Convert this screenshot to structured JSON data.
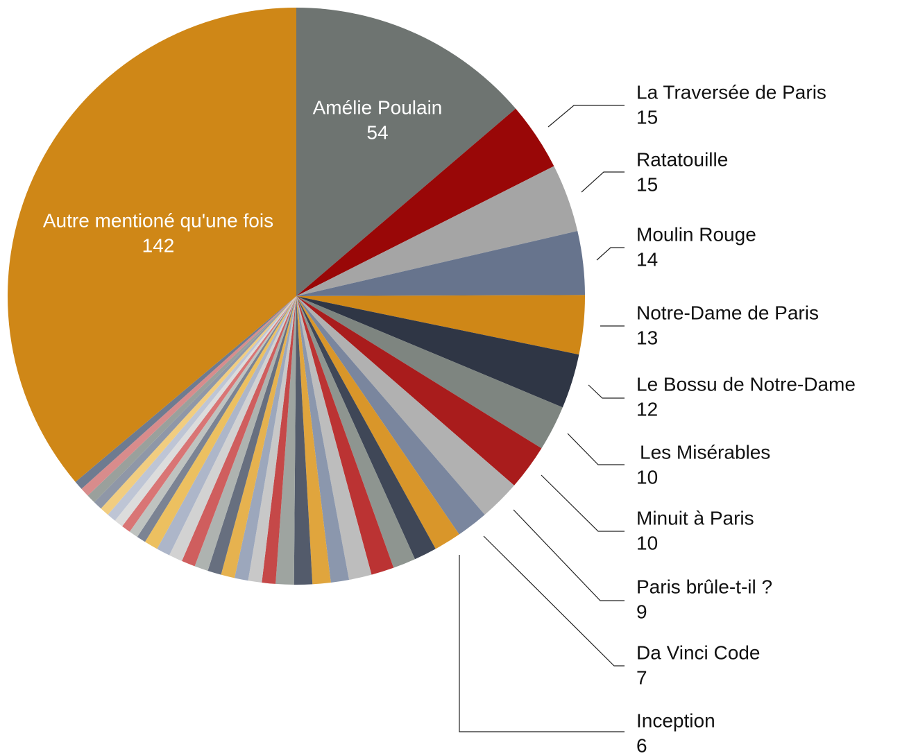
{
  "chart_data": {
    "type": "pie",
    "categories": [
      "Amélie Poulain",
      "La Traversée de Paris",
      "Ratatouille",
      "Moulin Rouge",
      "Notre-Dame de Paris",
      "Le Bossu de Notre-Dame",
      "Les Misérables",
      "Minuit à Paris",
      "Paris brûle-t-il ?",
      "Da Vinci Code",
      "Inception",
      null,
      null,
      null,
      null,
      null,
      null,
      null,
      null,
      null,
      null,
      null,
      null,
      null,
      null,
      null,
      null,
      null,
      null,
      null,
      null,
      null,
      null,
      null,
      null,
      null,
      null,
      null,
      null,
      "Autre mentioné qu'une fois"
    ],
    "values": [
      54,
      15,
      15,
      14,
      13,
      12,
      10,
      10,
      9,
      7,
      6,
      5,
      5,
      5,
      5,
      4,
      4,
      4,
      4,
      3,
      3,
      3,
      3,
      3,
      3,
      3,
      3,
      3,
      3,
      2,
      2,
      2,
      2,
      2,
      2,
      2,
      2,
      2,
      2,
      142
    ],
    "colors": [
      "#6e7471",
      "#990707",
      "#a5a5a5",
      "#67748d",
      "#cf8717",
      "#2f3645",
      "#7e8580",
      "#a91c1c",
      "#b1b1b1",
      "#7a869e",
      "#d9962a",
      "#3f4757",
      "#8e9590",
      "#bb3333",
      "#bdbdbd",
      "#8b97ad",
      "#e0a53d",
      "#535b6b",
      "#9ea4a0",
      "#c54848",
      "#c8c8c8",
      "#9ca7bc",
      "#e6b24f",
      "#676f7f",
      "#aeb3b0",
      "#cf5e5e",
      "#d2d2d2",
      "#adb6c9",
      "#ecc060",
      "#7b8393",
      "#bfc3c0",
      "#d97575",
      "#dcdcdc",
      "#bec5d5",
      "#f1cd80",
      "#8f97a7",
      "#9aa09c",
      "#d88c8c",
      "#6e7b90",
      "#cf8717"
    ]
  }
}
